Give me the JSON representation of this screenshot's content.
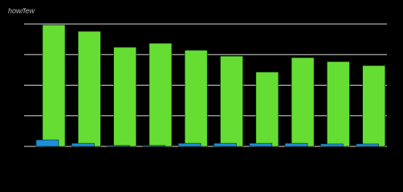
{
  "chart_data": {
    "type": "bar",
    "title": "how/few",
    "categories": [
      null,
      null,
      null,
      null,
      null,
      null,
      null,
      null,
      null,
      null
    ],
    "series": [
      {
        "color": "#66dd33",
        "values": [
          3.97,
          3.76,
          3.24,
          3.37,
          3.14,
          2.95,
          2.43,
          2.9,
          2.77,
          2.64
        ]
      },
      {
        "color": "#1a8fe0",
        "values": [
          0.21,
          0.1,
          0.03,
          0.03,
          0.1,
          0.1,
          0.1,
          0.1,
          0.08,
          0.08
        ]
      }
    ],
    "ylim": [
      0,
      4
    ],
    "yticks": [
      0,
      1,
      2,
      3,
      4
    ],
    "grid": true
  }
}
